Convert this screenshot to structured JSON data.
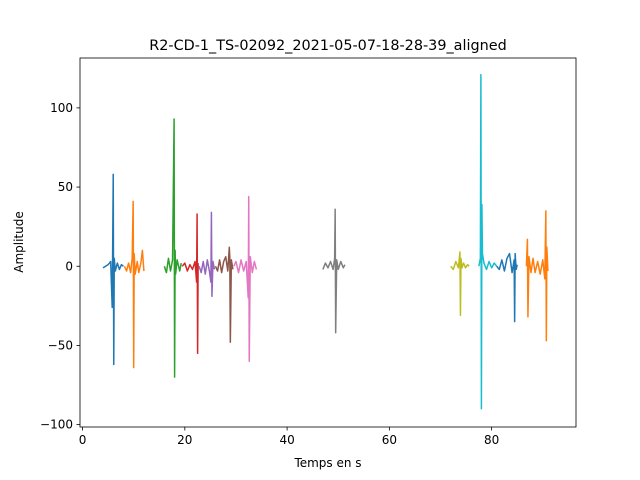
{
  "chart_data": {
    "type": "line",
    "title": "R2-CD-1_TS-02092_2021-05-07-18-28-39_aligned",
    "xlabel": "Temps en s",
    "ylabel": "Amplitude",
    "xlim": [
      -0.5,
      96.5
    ],
    "ylim": [
      -101.5,
      131.5
    ],
    "xticks": [
      0,
      20,
      40,
      60,
      80
    ],
    "yticks": [
      -100,
      -50,
      0,
      50,
      100
    ],
    "grid": false,
    "legend": "none",
    "series": [
      {
        "color": "#1f77b4",
        "x": [
          4.0,
          4.5,
          5.0,
          5.5,
          5.8,
          6.0,
          6.1,
          6.2,
          6.4,
          6.8,
          7.2,
          7.6,
          8.0
        ],
        "y": [
          -1,
          0,
          1,
          3,
          -26,
          58,
          -62,
          5,
          -3,
          2,
          -2,
          1,
          0
        ]
      },
      {
        "color": "#ff7f0e",
        "x": [
          8.2,
          8.6,
          9.0,
          9.4,
          9.7,
          9.9,
          10.0,
          10.1,
          10.3,
          10.7,
          11.0,
          11.4,
          11.7,
          12.0
        ],
        "y": [
          0,
          -3,
          2,
          -4,
          5,
          41,
          -64,
          8,
          -5,
          3,
          -4,
          2,
          10,
          -3
        ]
      },
      {
        "color": "#2ca02c",
        "x": [
          16.0,
          16.4,
          16.8,
          17.2,
          17.6,
          17.9,
          18.0,
          18.1,
          18.2,
          18.5,
          19.0,
          19.3
        ],
        "y": [
          0,
          -4,
          5,
          -3,
          4,
          93,
          -70,
          10,
          -5,
          4,
          -3,
          2
        ]
      },
      {
        "color": "#d62728",
        "x": [
          19.5,
          20.0,
          20.5,
          21.0,
          21.5,
          22.0,
          22.3,
          22.4,
          22.5,
          22.6
        ],
        "y": [
          0,
          2,
          -3,
          1,
          -2,
          3,
          -10,
          33,
          -55,
          2
        ]
      },
      {
        "color": "#9467bd",
        "x": [
          22.8,
          23.2,
          23.6,
          24.0,
          24.4,
          24.8,
          25.1,
          25.2,
          25.3,
          25.5,
          25.8
        ],
        "y": [
          0,
          -4,
          3,
          -5,
          4,
          -3,
          -10,
          34,
          -19,
          3,
          -2
        ]
      },
      {
        "color": "#8c564b",
        "x": [
          26.0,
          26.4,
          26.8,
          27.2,
          27.6,
          28.0,
          28.4,
          28.7,
          28.8,
          28.9,
          29.1,
          29.4
        ],
        "y": [
          0,
          -3,
          4,
          -4,
          3,
          6,
          -3,
          12,
          5,
          -48,
          4,
          -2
        ]
      },
      {
        "color": "#e377c2",
        "x": [
          29.6,
          30.0,
          30.5,
          31.0,
          31.5,
          32.0,
          32.4,
          32.5,
          32.6,
          32.8,
          33.2,
          33.6,
          34.0
        ],
        "y": [
          0,
          3,
          -4,
          4,
          -3,
          3,
          -20,
          44,
          -60,
          6,
          -4,
          3,
          -2
        ]
      },
      {
        "color": "#7f7f7f",
        "x": [
          47.0,
          47.5,
          48.0,
          48.5,
          49.0,
          49.3,
          49.4,
          49.5,
          49.7,
          50.0,
          50.5,
          51.0,
          51.3
        ],
        "y": [
          -2,
          2,
          -1,
          3,
          -2,
          5,
          36,
          -42,
          4,
          -2,
          3,
          -1,
          1
        ]
      },
      {
        "color": "#bcbd22",
        "x": [
          72.0,
          72.5,
          73.0,
          73.5,
          73.8,
          73.9,
          74.0,
          74.2,
          74.5,
          74.9,
          75.3,
          75.6
        ],
        "y": [
          0,
          -2,
          3,
          -1,
          9,
          -31,
          5,
          -1,
          2,
          -1,
          1,
          0
        ]
      },
      {
        "color": "#17becf",
        "x": [
          77.5,
          77.8,
          77.9,
          78.0,
          78.1,
          78.2,
          78.5,
          79.0,
          79.5,
          80.0,
          80.5,
          81.0
        ],
        "y": [
          0,
          5,
          121,
          -90,
          39,
          8,
          2,
          -2,
          3,
          -1,
          2,
          0
        ]
      },
      {
        "color": "#1f77b4",
        "x": [
          81.0,
          81.5,
          82.0,
          82.5,
          83.0,
          83.5,
          84.0,
          84.4,
          84.5,
          84.6,
          84.8,
          85.0
        ],
        "y": [
          0,
          -2,
          4,
          -3,
          5,
          8,
          -4,
          4,
          -35,
          8,
          -2,
          1
        ]
      },
      {
        "color": "#ff7f0e",
        "x": [
          86.8,
          87.0,
          87.1,
          87.3,
          87.7,
          88.1,
          88.5,
          89.0,
          89.5,
          90.0,
          90.4,
          90.6,
          90.7,
          90.8,
          91.0
        ],
        "y": [
          0,
          17,
          -32,
          6,
          -4,
          5,
          -4,
          3,
          -5,
          4,
          -8,
          35,
          -47,
          12,
          -3
        ]
      }
    ]
  }
}
